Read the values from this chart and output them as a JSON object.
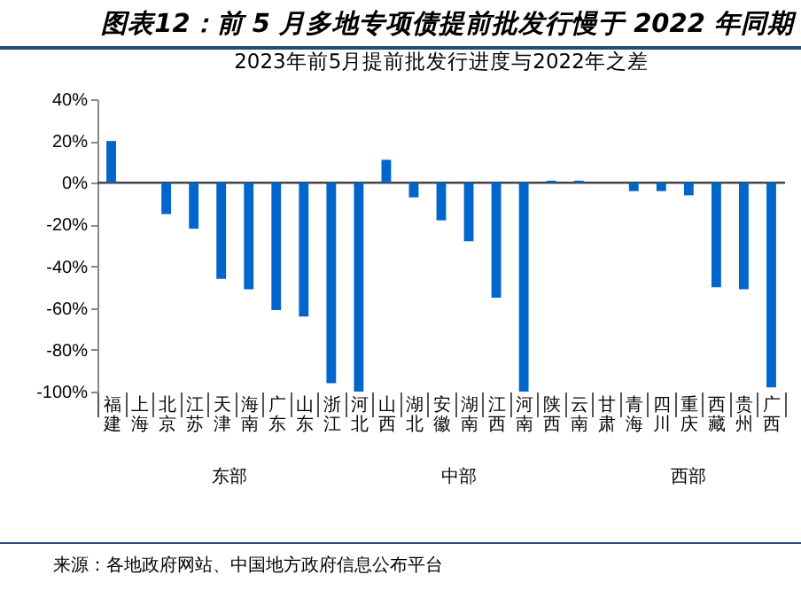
{
  "chart_data": {
    "type": "bar",
    "title": "图表12：前 5 月多地专项债提前批发行慢于 2022 年同期",
    "subtitle": "2023年前5月提前批发行进度与2022年之差",
    "categories": [
      "福建",
      "上海",
      "北京",
      "江苏",
      "天津",
      "海南",
      "广东",
      "山东",
      "浙江",
      "河北",
      "山西",
      "湖北",
      "安徽",
      "湖南",
      "江西",
      "河南",
      "陕西",
      "云南",
      "甘肃",
      "青海",
      "四川",
      "重庆",
      "西藏",
      "贵州",
      "广西"
    ],
    "values": [
      20,
      0,
      -15,
      -22,
      -46,
      -51,
      -61,
      -64,
      -96,
      -100,
      11,
      -7,
      -18,
      -28,
      -55,
      -100,
      1,
      1,
      0,
      -4,
      -4,
      -6,
      -50,
      -51,
      -98
    ],
    "color": "#0066cc",
    "ylim": [
      -100,
      40
    ],
    "yticks": [
      {
        "value": -100,
        "label": "-100%"
      },
      {
        "value": -80,
        "label": "-80%"
      },
      {
        "value": -60,
        "label": "-60%"
      },
      {
        "value": -40,
        "label": "-40%"
      },
      {
        "value": -20,
        "label": "-20%"
      },
      {
        "value": 0,
        "label": "0%"
      },
      {
        "value": 20,
        "label": "20%"
      },
      {
        "value": 40,
        "label": "40%"
      }
    ],
    "annotations": [
      "东部",
      "中部",
      "西部",
      "来源：各地政府网站、中国地方政府信息公布平台"
    ],
    "ref_lines": [
      {
        "axis": "y",
        "value": 0,
        "color": "#444444"
      }
    ],
    "grid": false,
    "legend": false
  }
}
